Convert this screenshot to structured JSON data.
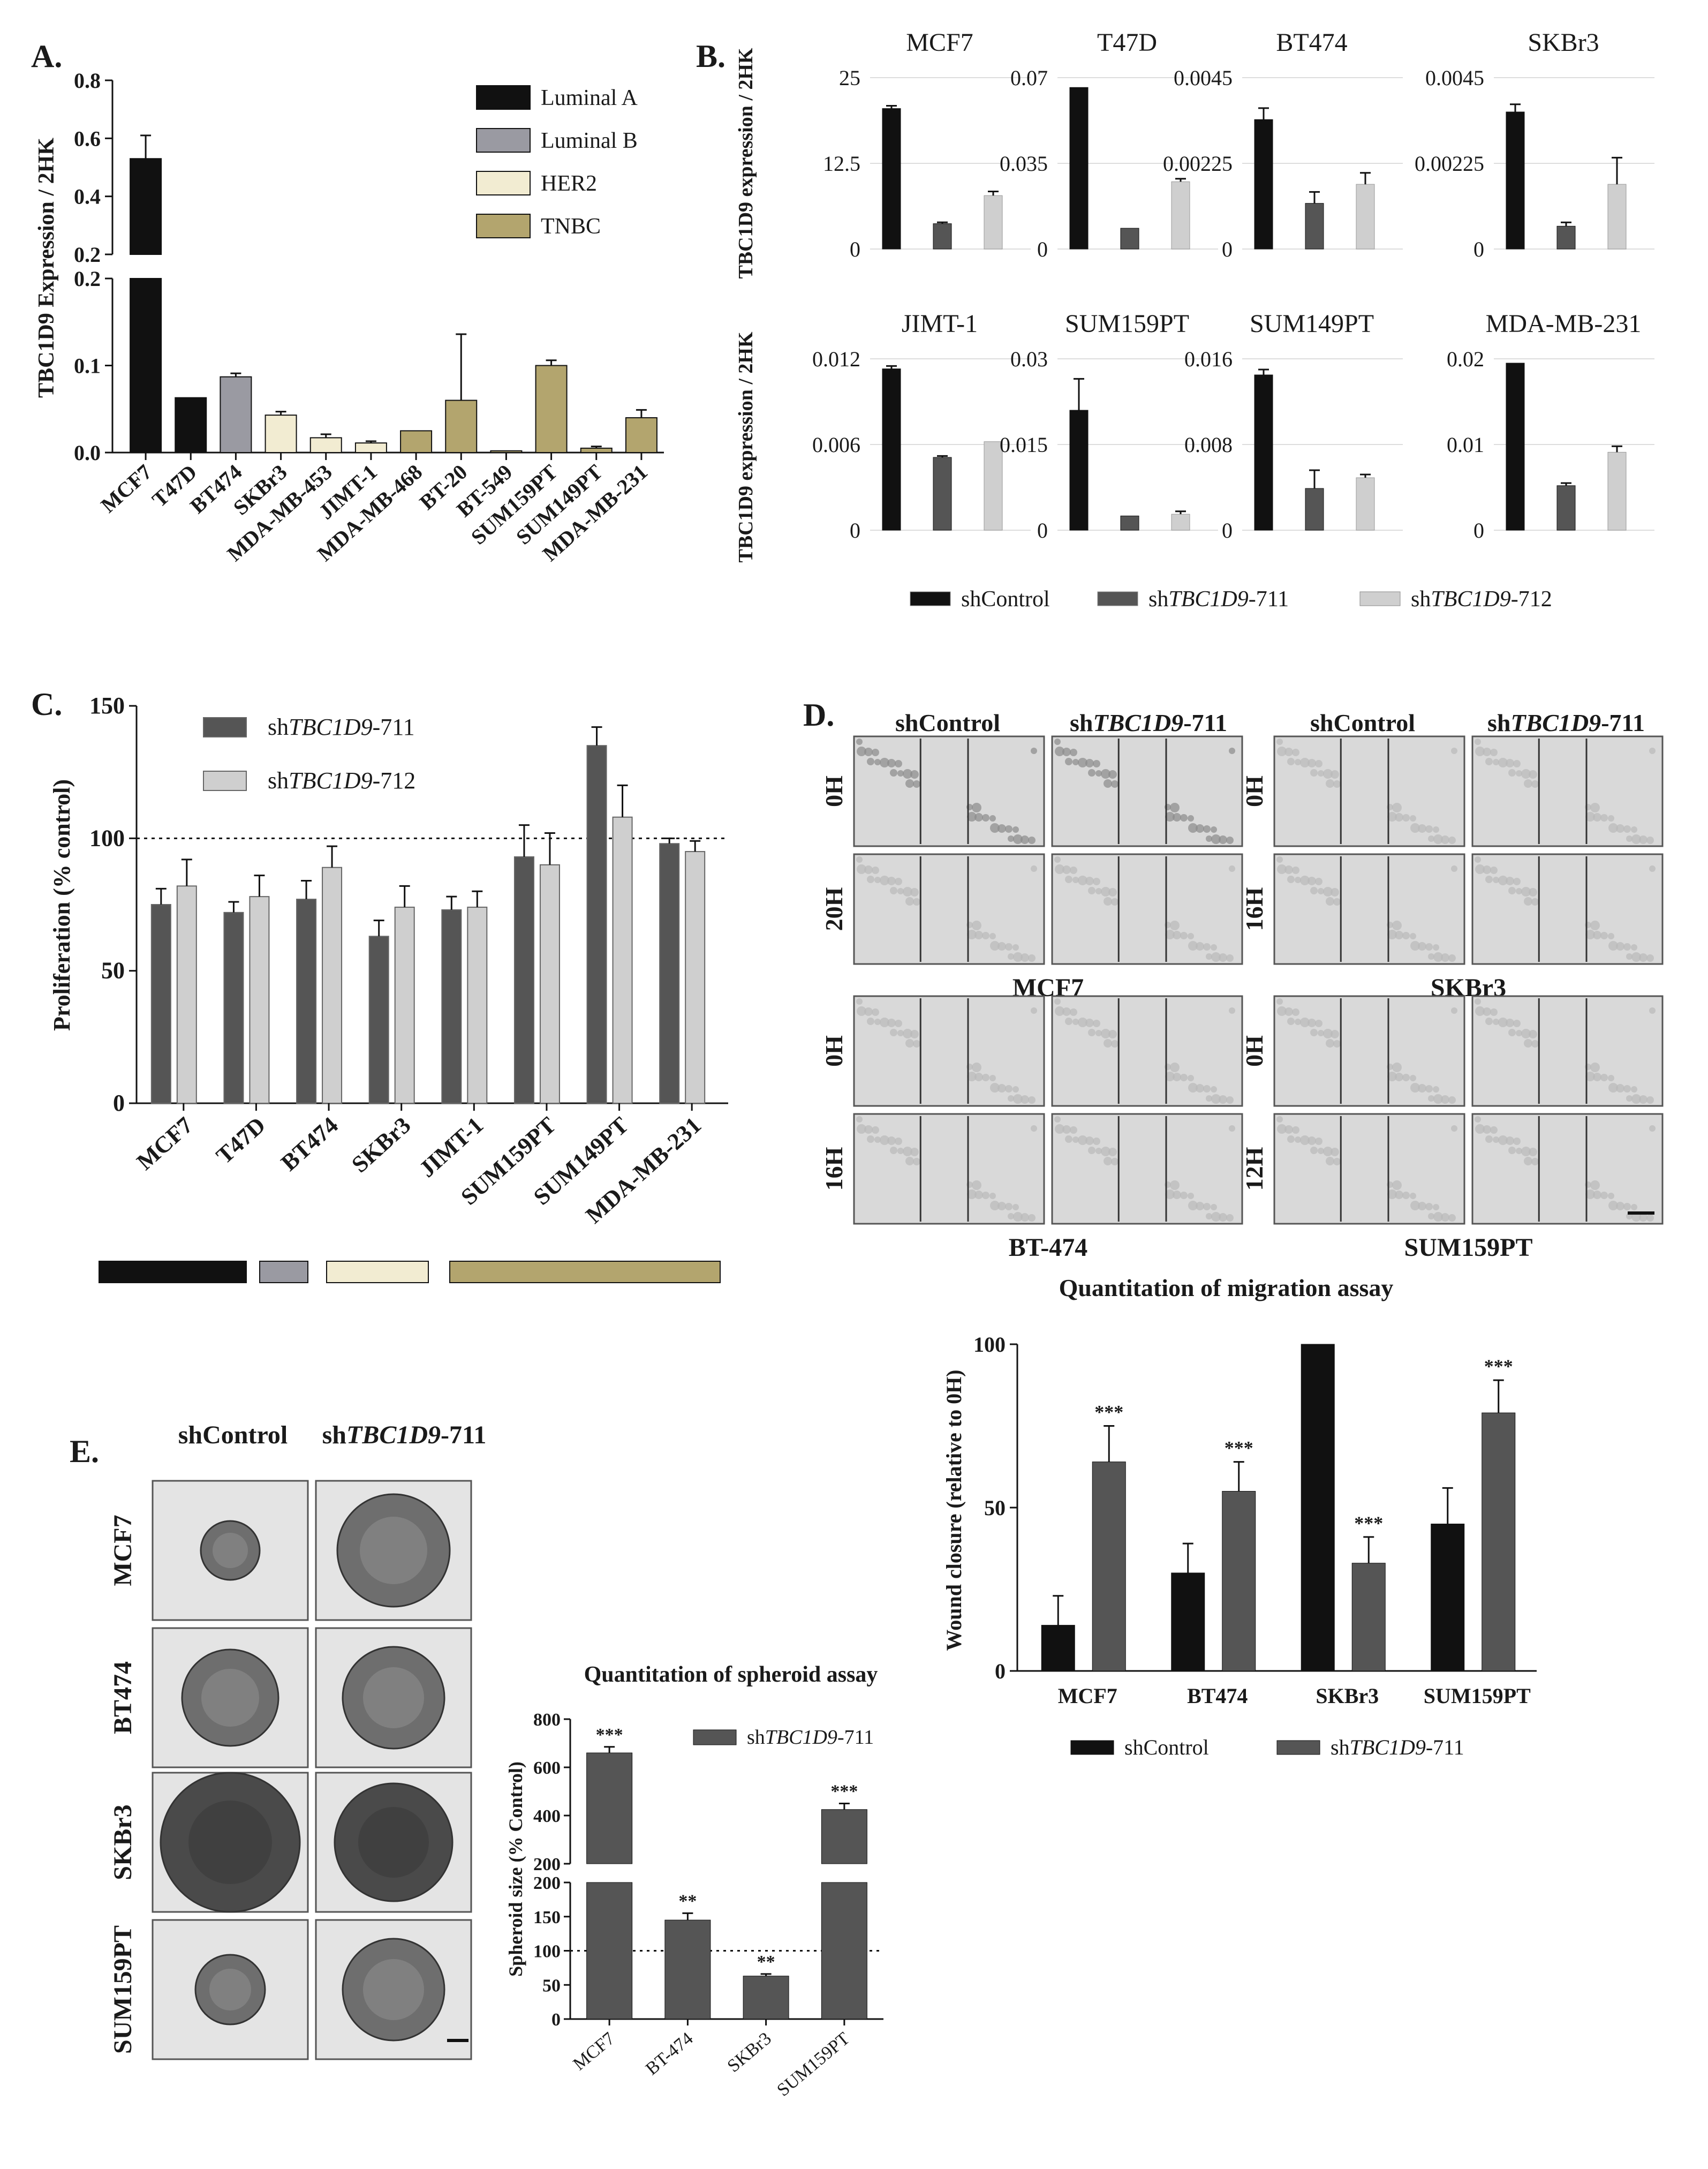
{
  "figure": {
    "panels": [
      "A.",
      "B.",
      "C.",
      "D.",
      "E."
    ]
  },
  "colors": {
    "luminal_a": "#111111",
    "luminal_b": "#9a9aa2",
    "her2": "#f2ecd2",
    "tnbc": "#b3a56e",
    "shcontrol": "#111111",
    "sh711": "#555555",
    "sh712": "#cfcfcf",
    "micrograph_bg": "#d9d9d9",
    "micrograph_dark": "#7a7a7a"
  },
  "chart_data": [
    {
      "panel": "A.",
      "type": "bar",
      "ylabel": "TBC1D9 Expression / 2HK",
      "broken_axis": true,
      "lower_ylim": [
        0,
        0.2
      ],
      "lower_ticks": [
        "0.0",
        "0.1",
        "0.2"
      ],
      "upper_ylim": [
        0.2,
        0.8
      ],
      "upper_ticks": [
        "0.2",
        "0.4",
        "0.6",
        "0.8"
      ],
      "categories": [
        "MCF7",
        "T47D",
        "BT474",
        "SKBr3",
        "MDA-MB-453",
        "JIMT-1",
        "MDA-MB-468",
        "BT-20",
        "BT-549",
        "SUM159PT",
        "SUM149PT",
        "MDA-MB-231"
      ],
      "values": [
        0.53,
        0.063,
        0.087,
        0.043,
        0.017,
        0.011,
        0.025,
        0.06,
        0.002,
        0.1,
        0.005,
        0.04
      ],
      "errors": [
        0.08,
        0.0,
        0.004,
        0.004,
        0.004,
        0.002,
        0.0,
        0.076,
        0.0,
        0.006,
        0.002,
        0.009
      ],
      "subtype": [
        "Luminal A",
        "Luminal A",
        "Luminal B",
        "HER2",
        "HER2",
        "HER2",
        "TNBC",
        "TNBC",
        "TNBC",
        "TNBC",
        "TNBC",
        "TNBC"
      ],
      "legend": [
        "Luminal A",
        "Luminal B",
        "HER2",
        "TNBC"
      ],
      "legend_position": "top-right"
    },
    {
      "panel": "B.",
      "type": "bar",
      "ylabel": "TBC1D9 expression / 2HK",
      "series_names": [
        "shControl",
        "shTBC1D9-711",
        "shTBC1D9-712"
      ],
      "legend_position": "bottom",
      "subplots": [
        {
          "title": "MCF7",
          "ticks": [
            "0",
            "12.5",
            "25"
          ],
          "ymax": 25,
          "values": [
            20.5,
            3.7,
            7.8
          ],
          "errors": [
            0.4,
            0.2,
            0.6
          ]
        },
        {
          "title": "T47D",
          "ticks": [
            "0",
            "0.035",
            "0.07"
          ],
          "ymax": 0.07,
          "values": [
            0.066,
            0.0085,
            0.0275
          ],
          "errors": [
            0.0,
            0.0,
            0.0012
          ]
        },
        {
          "title": "BT474",
          "ticks": [
            "0",
            "0.00225",
            "0.0045"
          ],
          "ymax": 0.0045,
          "values": [
            0.0034,
            0.0012,
            0.0017
          ],
          "errors": [
            0.0003,
            0.0003,
            0.0003
          ]
        },
        {
          "title": "SKBr3",
          "ticks": [
            "0",
            "0.00225",
            "0.0045"
          ],
          "ymax": 0.0045,
          "values": [
            0.0036,
            0.0006,
            0.0017
          ],
          "errors": [
            0.0002,
            0.0001,
            0.0007
          ]
        },
        {
          "title": "JIMT-1",
          "ticks": [
            "0",
            "0.006",
            "0.012"
          ],
          "ymax": 0.012,
          "values": [
            0.0113,
            0.0051,
            0.0062
          ],
          "errors": [
            0.0002,
            0.0001,
            0.0
          ]
        },
        {
          "title": "SUM159PT",
          "ticks": [
            "0",
            "0.015",
            "0.03"
          ],
          "ymax": 0.03,
          "values": [
            0.021,
            0.0025,
            0.0028
          ],
          "errors": [
            0.0055,
            0.0,
            0.0005
          ]
        },
        {
          "title": "SUM149PT",
          "ticks": [
            "0",
            "0.008",
            "0.016"
          ],
          "ymax": 0.016,
          "values": [
            0.0145,
            0.0039,
            0.0049
          ],
          "errors": [
            0.0005,
            0.0017,
            0.0003
          ]
        },
        {
          "title": "MDA-MB-231",
          "ticks": [
            "0",
            "0.01",
            "0.02"
          ],
          "ymax": 0.02,
          "values": [
            0.0195,
            0.0052,
            0.0091
          ],
          "errors": [
            0.0,
            0.0003,
            0.0007
          ]
        }
      ]
    },
    {
      "panel": "C.",
      "type": "bar",
      "ylabel": "Proliferation (% control)",
      "ylim": [
        0,
        150
      ],
      "ticks": [
        "0",
        "50",
        "100",
        "150"
      ],
      "reference_line": 100,
      "categories": [
        "MCF7",
        "T47D",
        "BT474",
        "SKBr3",
        "JIMT-1",
        "SUM159PT",
        "SUM149PT",
        "MDA-MB-231"
      ],
      "series": [
        {
          "name": "shTBC1D9-711",
          "values": [
            75,
            72,
            77,
            63,
            73,
            93,
            135,
            98
          ],
          "errors": [
            6,
            4,
            7,
            6,
            5,
            12,
            7,
            2
          ]
        },
        {
          "name": "shTBC1D9-712",
          "values": [
            82,
            78,
            89,
            74,
            74,
            90,
            108,
            95
          ],
          "errors": [
            10,
            8,
            8,
            8,
            6,
            12,
            12,
            4
          ]
        }
      ],
      "subtype_bar": [
        "Luminal A",
        "Luminal B",
        "HER2",
        "TNBC"
      ],
      "legend_position": "top-left"
    },
    {
      "panel": "D.",
      "type": "bar",
      "title": "Quantitation of migration assay",
      "ylabel": "Wound closure (relative to 0H)",
      "ylim": [
        0,
        100
      ],
      "ticks": [
        "0",
        "50",
        "100"
      ],
      "categories": [
        "MCF7",
        "BT474",
        "SKBr3",
        "SUM159PT"
      ],
      "series": [
        {
          "name": "shControl",
          "values": [
            14,
            30,
            100,
            45
          ],
          "errors": [
            9,
            9,
            0,
            11
          ]
        },
        {
          "name": "shTBC1D9-711",
          "values": [
            64,
            55,
            33,
            79
          ],
          "errors": [
            11,
            9,
            8,
            10
          ],
          "significance": [
            "***",
            "***",
            "***",
            "***"
          ]
        }
      ],
      "legend_position": "bottom"
    },
    {
      "panel": "E.",
      "type": "bar",
      "title": "Quantitation of spheroid assay",
      "ylabel": "Spheroid size (% Control)",
      "broken_axis": true,
      "lower_ylim": [
        0,
        200
      ],
      "lower_ticks": [
        "0",
        "50",
        "100",
        "150",
        "200"
      ],
      "upper_ylim": [
        200,
        800
      ],
      "upper_ticks": [
        "200",
        "400",
        "600",
        "800"
      ],
      "reference_line": 100,
      "categories": [
        "MCF7",
        "BT-474",
        "SKBr3",
        "SUM159PT"
      ],
      "series": [
        {
          "name": "shTBC1D9-711",
          "values": [
            660,
            145,
            63,
            425
          ],
          "errors": [
            25,
            10,
            3,
            25
          ],
          "significance": [
            "***",
            "**",
            "**",
            "***"
          ]
        }
      ],
      "legend_position": "top-right"
    }
  ],
  "micrographs": {
    "d_headers": [
      "shControl",
      "shTBC1D9-711",
      "shControl",
      "shTBC1D9-711"
    ],
    "d_times_mcf7": [
      "0H",
      "20H"
    ],
    "d_times_skbr3": [
      "0H",
      "16H"
    ],
    "d_times_bt474": [
      "0H",
      "16H"
    ],
    "d_times_sum159": [
      "0H",
      "12H"
    ],
    "d_captions": [
      "MCF7",
      "SKBr3",
      "BT-474",
      "SUM159PT"
    ],
    "e_headers": [
      "shControl",
      "shTBC1D9-711"
    ],
    "e_rows": [
      "MCF7",
      "BT474",
      "SKBr3",
      "SUM159PT"
    ]
  }
}
